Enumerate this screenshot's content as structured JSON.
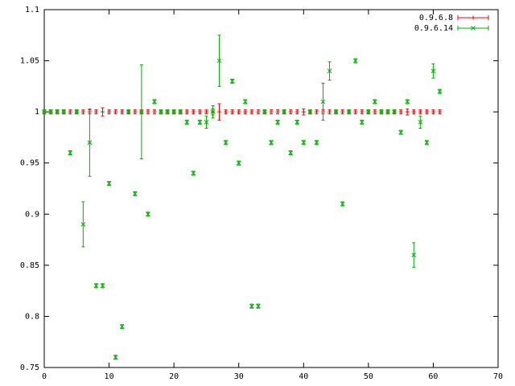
{
  "chart_data": {
    "type": "errorbar",
    "xlim": [
      0,
      70
    ],
    "xticks": [
      0,
      10,
      20,
      30,
      40,
      50,
      60,
      70
    ],
    "ylim": [
      0.75,
      1.1
    ],
    "yticks": [
      0.75,
      0.8,
      0.85,
      0.9,
      0.95,
      1,
      1.05,
      1.1
    ],
    "legend": "top-right",
    "series": [
      {
        "name": "0.9.6.8",
        "color": "#ff0000",
        "marker": "plus",
        "x": [
          0,
          1,
          2,
          3,
          4,
          5,
          6,
          7,
          8,
          9,
          10,
          11,
          12,
          13,
          14,
          15,
          16,
          17,
          18,
          19,
          20,
          21,
          22,
          23,
          24,
          25,
          26,
          27,
          28,
          29,
          30,
          31,
          32,
          33,
          34,
          35,
          36,
          37,
          38,
          39,
          40,
          41,
          42,
          43,
          44,
          45,
          46,
          47,
          48,
          49,
          50,
          51,
          52,
          53,
          54,
          55,
          56,
          57,
          58,
          59,
          60,
          61
        ],
        "values": [
          1,
          1,
          1,
          1,
          1,
          1,
          1,
          1,
          1,
          1,
          1,
          1,
          1,
          1,
          1,
          1,
          1,
          1,
          1,
          1,
          1,
          1,
          1,
          1,
          1,
          1,
          1,
          1,
          1,
          1,
          1,
          1,
          1,
          1,
          1,
          1,
          1,
          1,
          1,
          1,
          1,
          1,
          1,
          1,
          1,
          1,
          1,
          1,
          1,
          1,
          1,
          1,
          1,
          1,
          1,
          1,
          1,
          1,
          1,
          1,
          1,
          1
        ],
        "errors": [
          0.002,
          0.002,
          0.002,
          0.002,
          0.002,
          0.002,
          0.002,
          0.002,
          0.002,
          0.004,
          0.002,
          0.002,
          0.002,
          0.002,
          0.002,
          0.002,
          0.002,
          0.002,
          0.002,
          0.002,
          0.002,
          0.002,
          0.002,
          0.002,
          0.002,
          0.002,
          0.003,
          0.008,
          0.002,
          0.002,
          0.002,
          0.002,
          0.002,
          0.002,
          0.002,
          0.002,
          0.002,
          0.002,
          0.002,
          0.002,
          0.003,
          0.002,
          0.002,
          0.002,
          0.002,
          0.002,
          0.002,
          0.002,
          0.002,
          0.002,
          0.002,
          0.002,
          0.002,
          0.002,
          0.002,
          0.002,
          0.003,
          0.002,
          0.002,
          0.002,
          0.002,
          0.002
        ]
      },
      {
        "name": "0.9.6.14",
        "color": "#00b000",
        "marker": "cross",
        "x": [
          0,
          1,
          2,
          3,
          4,
          5,
          6,
          7,
          8,
          9,
          10,
          11,
          12,
          13,
          14,
          15,
          16,
          17,
          18,
          19,
          20,
          21,
          22,
          23,
          24,
          25,
          26,
          27,
          28,
          29,
          30,
          31,
          32,
          33,
          34,
          35,
          36,
          37,
          38,
          39,
          40,
          41,
          42,
          43,
          44,
          45,
          46,
          47,
          48,
          49,
          50,
          51,
          52,
          53,
          54,
          55,
          56,
          57,
          58,
          59,
          60,
          61
        ],
        "values": [
          1,
          1,
          1,
          1,
          0.96,
          1,
          0.89,
          0.97,
          0.83,
          0.83,
          0.93,
          0.76,
          0.79,
          1,
          0.92,
          1,
          0.9,
          1.01,
          1,
          1,
          1,
          1,
          0.99,
          0.94,
          0.99,
          0.99,
          1,
          1.05,
          0.97,
          1.03,
          0.95,
          1.01,
          0.81,
          0.81,
          1,
          0.97,
          0.99,
          1,
          0.96,
          0.99,
          0.97,
          1,
          0.97,
          1.01,
          1.04,
          1,
          0.91,
          1,
          1.05,
          0.99,
          1,
          1.01,
          1,
          1,
          1,
          0.98,
          1.01,
          0.86,
          0.99,
          0.97,
          1.04,
          1.02
        ],
        "errors": [
          0.002,
          0.002,
          0.002,
          0.002,
          0.002,
          0.002,
          0.022,
          0.033,
          0.002,
          0.002,
          0.002,
          0.002,
          0.002,
          0.002,
          0.002,
          0.046,
          0.002,
          0.002,
          0.002,
          0.002,
          0.002,
          0.002,
          0.002,
          0.002,
          0.002,
          0.006,
          0.006,
          0.025,
          0.002,
          0.002,
          0.002,
          0.002,
          0.002,
          0.002,
          0.002,
          0.002,
          0.002,
          0.002,
          0.002,
          0.002,
          0.002,
          0.002,
          0.002,
          0.018,
          0.009,
          0.002,
          0.002,
          0.002,
          0.002,
          0.002,
          0.002,
          0.002,
          0.002,
          0.002,
          0.002,
          0.002,
          0.002,
          0.012,
          0.006,
          0.002,
          0.007,
          0.002
        ]
      }
    ]
  }
}
